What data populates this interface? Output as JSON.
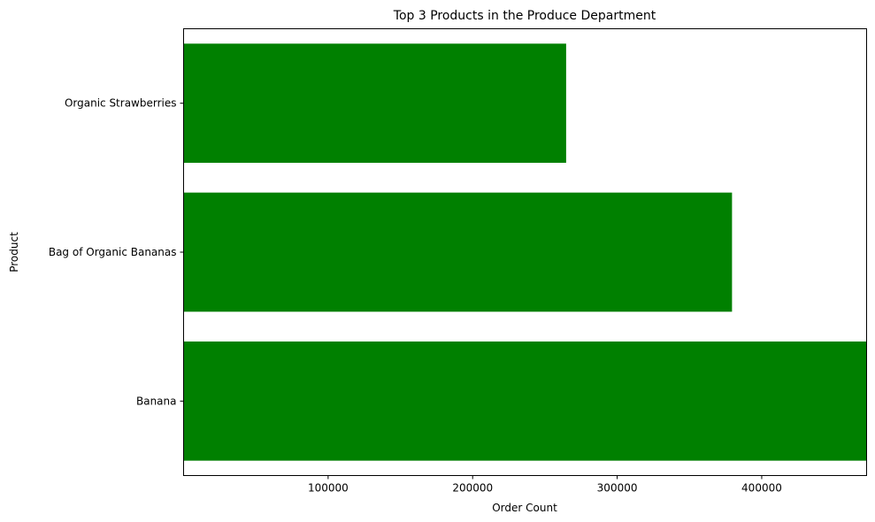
{
  "chart_data": {
    "type": "bar",
    "orientation": "horizontal",
    "title": "Top 3 Products in the Produce Department",
    "xlabel": "Order Count",
    "ylabel": "Product",
    "categories": [
      "Banana",
      "Bag of Organic Bananas",
      "Organic Strawberries"
    ],
    "values": [
      472565,
      379450,
      264683
    ],
    "xlim": [
      0,
      472565
    ],
    "xticks": [
      100000,
      200000,
      300000,
      400000
    ],
    "xtick_labels": [
      "100000",
      "200000",
      "300000",
      "400000"
    ],
    "grid": false,
    "legend": "none",
    "bar_color": "#008000"
  }
}
